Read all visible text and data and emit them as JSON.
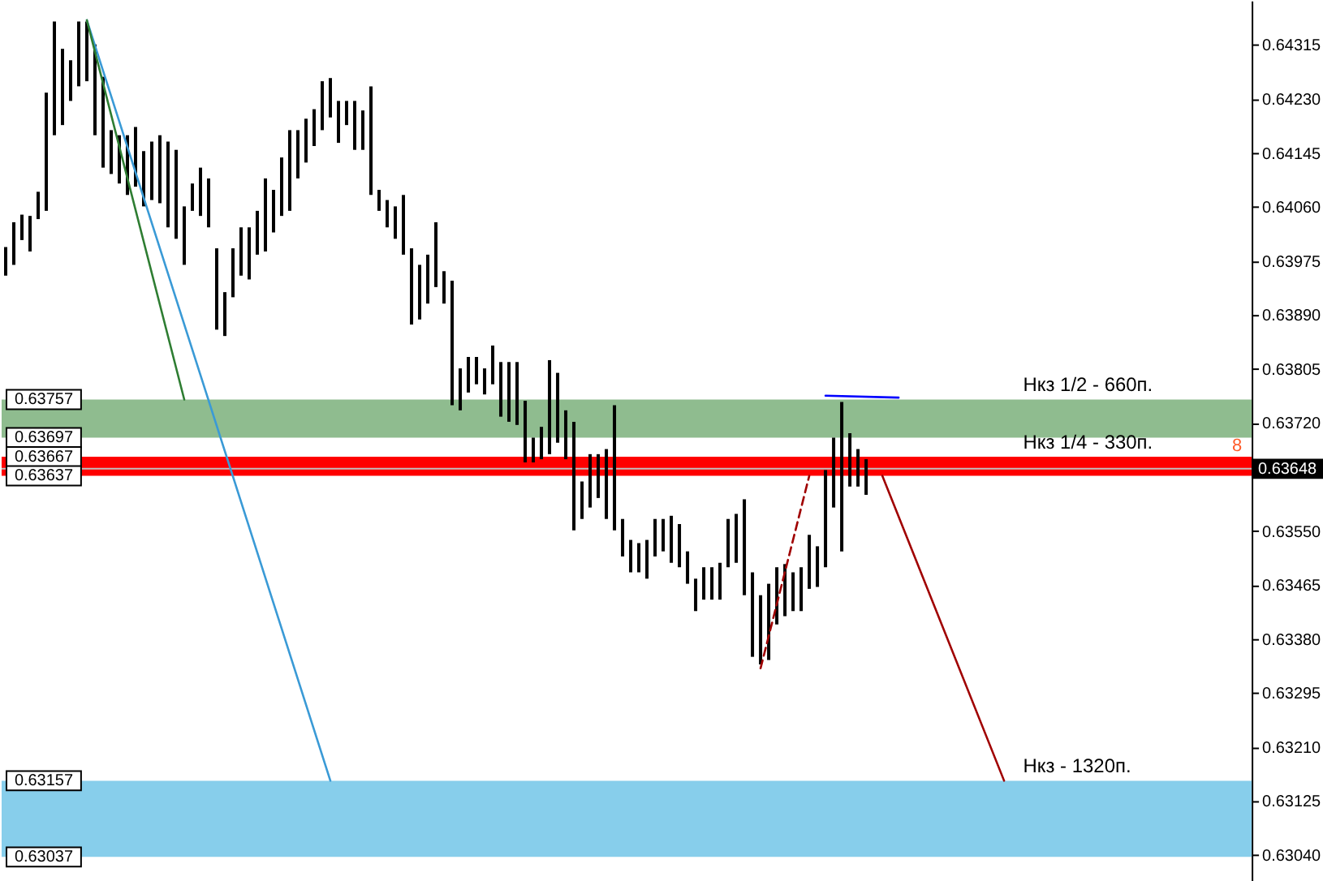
{
  "chart_data": {
    "type": "bar",
    "categories": [
      null,
      null,
      null,
      null,
      null,
      null,
      null,
      null,
      null,
      null,
      null,
      null,
      null,
      null,
      null,
      null,
      null,
      null,
      null,
      null,
      null,
      null,
      null,
      null,
      null,
      null,
      null,
      null,
      null,
      null,
      null,
      null,
      null,
      null,
      null,
      null,
      null,
      null,
      null,
      null,
      null,
      null,
      null,
      null,
      null,
      null,
      null,
      null,
      null,
      null,
      null,
      null,
      null,
      null,
      null,
      null,
      null,
      null,
      null,
      null,
      null,
      null,
      null,
      null,
      null,
      null,
      null,
      null,
      null,
      null,
      null,
      null,
      null,
      null,
      null,
      null,
      null,
      null,
      null,
      null,
      null,
      null,
      null,
      null,
      null,
      null,
      null,
      null,
      null,
      null,
      null,
      null,
      null,
      null,
      null,
      null,
      null,
      null,
      null,
      null,
      null,
      null,
      null,
      null,
      null,
      null,
      null,
      null,
      null,
      null,
      null,
      null,
      null,
      null,
      null,
      null,
      null,
      null,
      null,
      null,
      null,
      null,
      null,
      null,
      null,
      null,
      null,
      null,
      null,
      null,
      null,
      null,
      null,
      null,
      null,
      null,
      null,
      null,
      null,
      null,
      null,
      null,
      null,
      null,
      null,
      null,
      null,
      null,
      null,
      null,
      null,
      null,
      null,
      null
    ],
    "series": [
      {
        "color": "#000000",
        "base": [
          0.63952,
          0.63969,
          0.64008,
          0.6399,
          0.64041,
          0.64054,
          0.64173,
          0.64189,
          0.64227,
          0.6425,
          0.64258,
          0.64173,
          0.64122,
          0.64112,
          0.64097,
          0.64079,
          0.64092,
          0.64061,
          0.64071,
          0.64066,
          0.64028,
          0.6401,
          0.63969,
          0.64054,
          0.64046,
          0.64028,
          0.63867,
          0.63857,
          0.63918,
          0.63952,
          0.63946,
          0.63985,
          0.6399,
          0.6402,
          0.64046,
          0.64054,
          0.64105,
          0.6413,
          0.64156,
          0.64181,
          0.64201,
          0.64161,
          0.64189,
          0.6415,
          0.6415,
          0.64079,
          0.64054,
          0.64028,
          0.6401,
          0.63985,
          0.63875,
          0.63883,
          0.63908,
          0.63934,
          0.63908,
          0.63748,
          0.6374,
          0.63768,
          0.63781,
          0.63765,
          0.63781,
          0.6373,
          0.63722,
          0.63717,
          0.63658,
          0.63658,
          0.63663,
          0.63671,
          0.63689,
          0.63663,
          0.63551,
          0.63569,
          0.63587,
          0.63602,
          0.63569,
          0.63551,
          0.6351,
          0.63485,
          0.63485,
          0.63475,
          0.6351,
          0.63518,
          0.635,
          0.63493,
          0.63467,
          0.63424,
          0.63442,
          0.63442,
          0.63442,
          0.63493,
          0.635,
          0.63449,
          0.63352,
          0.6334,
          0.63347,
          0.63403,
          0.63416,
          0.63424,
          0.63424,
          0.63459,
          0.63462,
          0.63493,
          0.63587,
          0.63518,
          0.6362,
          0.6362,
          0.63607,
          null,
          null,
          null,
          null,
          null,
          null,
          null,
          null,
          null,
          null,
          null,
          null,
          null,
          null,
          null,
          null,
          null,
          null,
          null,
          null,
          null,
          null,
          null,
          null,
          null,
          null,
          null,
          null,
          null,
          null,
          null,
          null,
          null,
          null,
          null,
          null,
          null,
          null,
          null,
          null,
          null,
          null,
          null,
          null,
          null,
          null,
          null
        ],
        "values": [
          0.00045,
          0.00067,
          0.0004,
          0.00056,
          0.00043,
          0.00186,
          0.00179,
          0.0012,
          0.00064,
          0.00102,
          0.00094,
          0.00143,
          0.00143,
          0.00069,
          0.00076,
          0.00094,
          0.00094,
          0.00087,
          0.00092,
          0.00107,
          0.00135,
          0.0014,
          0.00092,
          0.00043,
          0.00076,
          0.00077,
          0.00128,
          0.00069,
          0.00077,
          0.00076,
          0.00082,
          0.00069,
          0.00115,
          0.00067,
          0.00092,
          0.00127,
          0.00076,
          0.00069,
          0.00058,
          0.00077,
          0.00062,
          0.00066,
          0.00038,
          0.00077,
          0.00062,
          0.00171,
          0.00033,
          0.00043,
          0.00051,
          0.00094,
          0.0012,
          0.00086,
          0.00077,
          0.00102,
          0.00051,
          0.00196,
          0.00066,
          0.00056,
          0.00043,
          0.00041,
          0.00061,
          0.00086,
          0.00094,
          0.00099,
          0.00097,
          0.00039,
          0.00051,
          0.00148,
          0.0011,
          0.00077,
          0.00171,
          0.00059,
          0.00084,
          0.00069,
          0.0011,
          0.00197,
          0.00059,
          0.00051,
          0.00046,
          0.00061,
          0.00059,
          0.00051,
          0.00074,
          0.00068,
          0.00051,
          0.00051,
          0.00051,
          0.00051,
          0.00058,
          0.00076,
          0.00077,
          0.00151,
          0.00133,
          0.00109,
          0.0012,
          0.0009,
          0.00082,
          0.00061,
          0.00069,
          0.00085,
          0.00064,
          0.00153,
          0.0011,
          0.00235,
          0.00084,
          0.00059,
          0.00056,
          null,
          null,
          null,
          null,
          null,
          null,
          null,
          null,
          null,
          null,
          null,
          null,
          null,
          null,
          null,
          null,
          null,
          null,
          null,
          null,
          null,
          null,
          null,
          null,
          null,
          null,
          null,
          null,
          null,
          null,
          null,
          null,
          null,
          null,
          null,
          null,
          null,
          null,
          null,
          null,
          null,
          null,
          null,
          null,
          null,
          null,
          null
        ]
      },
      {
        "type": "line",
        "color": "#3a9ad6",
        "values": [
          null,
          null,
          null,
          null,
          null,
          null,
          null,
          null,
          null,
          null,
          0.64354,
          null,
          null,
          null,
          null,
          null,
          null,
          null,
          null,
          null,
          null,
          null,
          null,
          null,
          null,
          null,
          null,
          null,
          null,
          null,
          null,
          null,
          null,
          null,
          null,
          null,
          null,
          null,
          null,
          null,
          0.63157,
          null,
          null,
          null,
          null,
          null,
          null,
          null,
          null,
          null,
          null,
          null,
          null,
          null,
          null,
          null,
          null,
          null,
          null,
          null,
          null,
          null,
          null,
          null,
          null,
          null,
          null,
          null,
          null,
          null,
          null,
          null,
          null,
          null,
          null,
          null,
          null,
          null,
          null,
          null,
          null,
          null,
          null,
          null,
          null,
          null,
          null,
          null,
          null,
          null,
          null,
          null,
          null,
          null,
          null,
          null,
          null,
          null,
          null,
          null,
          null,
          null,
          null,
          null,
          null,
          null,
          null,
          null,
          null,
          null,
          null,
          null,
          null,
          null,
          null,
          null,
          null,
          null,
          null,
          null,
          null,
          null,
          null,
          null,
          null,
          null,
          null,
          null,
          null,
          null,
          null,
          null,
          null,
          null,
          null,
          null,
          null,
          null,
          null,
          null,
          null,
          null,
          null,
          null,
          null,
          null,
          null,
          null,
          null,
          null,
          null,
          null,
          null,
          null
        ]
      },
      {
        "type": "line",
        "color": "#2e7d32",
        "values": [
          null,
          null,
          null,
          null,
          null,
          null,
          null,
          null,
          null,
          null,
          0.64354,
          null,
          null,
          null,
          null,
          null,
          null,
          null,
          null,
          null,
          null,
          null,
          0.63757,
          null,
          null,
          null,
          null,
          null,
          null,
          null,
          null,
          null,
          null,
          null,
          null,
          null,
          null,
          null,
          null,
          null,
          null,
          null,
          null,
          null,
          null,
          null,
          null,
          null,
          null,
          null,
          null,
          null,
          null,
          null,
          null,
          null,
          null,
          null,
          null,
          null,
          null,
          null,
          null,
          null,
          null,
          null,
          null,
          null,
          null,
          null,
          null,
          null,
          null,
          null,
          null,
          null,
          null,
          null,
          null,
          null,
          null,
          null,
          null,
          null,
          null,
          null,
          null,
          null,
          null,
          null,
          null,
          null,
          null,
          null,
          null,
          null,
          null,
          null,
          null,
          null,
          null,
          null,
          null,
          null,
          null,
          null,
          null,
          null,
          null,
          null,
          null,
          null,
          null,
          null,
          null,
          null,
          null,
          null,
          null,
          null,
          null,
          null,
          null,
          null,
          null,
          null,
          null,
          null,
          null,
          null,
          null,
          null,
          null,
          null,
          null,
          null,
          null,
          null,
          null,
          null,
          null,
          null,
          null,
          null,
          null,
          null,
          null,
          null,
          null,
          null,
          null,
          null,
          null,
          null
        ]
      },
      {
        "type": "line",
        "color": "#a00000",
        "line_style": "dashed",
        "values": [
          null,
          null,
          null,
          null,
          null,
          null,
          null,
          null,
          null,
          null,
          null,
          null,
          null,
          null,
          null,
          null,
          null,
          null,
          null,
          null,
          null,
          null,
          null,
          null,
          null,
          null,
          null,
          null,
          null,
          null,
          null,
          null,
          null,
          null,
          null,
          null,
          null,
          null,
          null,
          null,
          null,
          null,
          null,
          null,
          null,
          null,
          null,
          null,
          null,
          null,
          null,
          null,
          null,
          null,
          null,
          null,
          null,
          null,
          null,
          null,
          null,
          null,
          null,
          null,
          null,
          null,
          null,
          null,
          null,
          null,
          null,
          null,
          null,
          null,
          null,
          null,
          null,
          null,
          null,
          null,
          null,
          null,
          null,
          null,
          null,
          null,
          null,
          null,
          null,
          null,
          null,
          null,
          null,
          0.63334,
          null,
          null,
          null,
          null,
          null,
          0.63637,
          null,
          null,
          null,
          null,
          null,
          null,
          null,
          null,
          null,
          null,
          null,
          null,
          null,
          null,
          null,
          null,
          null,
          null,
          null,
          null,
          null,
          null,
          null,
          null,
          null,
          null,
          null,
          null,
          null,
          null,
          null,
          null,
          null,
          null,
          null,
          null,
          null,
          null,
          null,
          null,
          null,
          null,
          null,
          null,
          null,
          null,
          null,
          null,
          null,
          null,
          null,
          null,
          null,
          null
        ]
      },
      {
        "type": "line",
        "color": "#0000ff",
        "values": [
          null,
          null,
          null,
          null,
          null,
          null,
          null,
          null,
          null,
          null,
          null,
          null,
          null,
          null,
          null,
          null,
          null,
          null,
          null,
          null,
          null,
          null,
          null,
          null,
          null,
          null,
          null,
          null,
          null,
          null,
          null,
          null,
          null,
          null,
          null,
          null,
          null,
          null,
          null,
          null,
          null,
          null,
          null,
          null,
          null,
          null,
          null,
          null,
          null,
          null,
          null,
          null,
          null,
          null,
          null,
          null,
          null,
          null,
          null,
          null,
          null,
          null,
          null,
          null,
          null,
          null,
          null,
          null,
          null,
          null,
          null,
          null,
          null,
          null,
          null,
          null,
          null,
          null,
          null,
          null,
          null,
          null,
          null,
          null,
          null,
          null,
          null,
          null,
          null,
          null,
          null,
          null,
          null,
          null,
          null,
          null,
          null,
          null,
          null,
          null,
          null,
          0.63763,
          null,
          null,
          null,
          null,
          null,
          null,
          null,
          null,
          0.6376,
          null,
          null,
          null,
          null,
          null,
          null,
          null,
          null,
          null,
          null,
          null,
          null,
          null,
          null,
          null,
          null,
          null,
          null,
          null,
          null,
          null,
          null,
          null,
          null,
          null,
          null,
          null,
          null,
          null,
          null,
          null,
          null,
          null,
          null,
          null,
          null,
          null,
          null,
          null,
          null,
          null,
          null,
          null
        ]
      },
      {
        "type": "line",
        "color": "#a00000",
        "values": [
          null,
          null,
          null,
          null,
          null,
          null,
          null,
          null,
          null,
          null,
          null,
          null,
          null,
          null,
          null,
          null,
          null,
          null,
          null,
          null,
          null,
          null,
          null,
          null,
          null,
          null,
          null,
          null,
          null,
          null,
          null,
          null,
          null,
          null,
          null,
          null,
          null,
          null,
          null,
          null,
          null,
          null,
          null,
          null,
          null,
          null,
          null,
          null,
          null,
          null,
          null,
          null,
          null,
          null,
          null,
          null,
          null,
          null,
          null,
          null,
          null,
          null,
          null,
          null,
          null,
          null,
          null,
          null,
          null,
          null,
          null,
          null,
          null,
          null,
          null,
          null,
          null,
          null,
          null,
          null,
          null,
          null,
          null,
          null,
          null,
          null,
          null,
          null,
          null,
          null,
          null,
          null,
          null,
          null,
          null,
          null,
          null,
          null,
          null,
          null,
          null,
          null,
          null,
          null,
          null,
          null,
          null,
          null,
          0.63637,
          null,
          null,
          null,
          null,
          null,
          null,
          null,
          null,
          null,
          null,
          null,
          null,
          null,
          null,
          0.63157,
          null,
          null,
          null,
          null,
          null,
          null,
          null,
          null,
          null,
          null,
          null,
          null,
          null,
          null,
          null,
          null,
          null,
          null,
          null,
          null,
          null,
          null,
          null,
          null,
          null,
          null,
          null,
          null,
          null,
          null
        ]
      }
    ],
    "ylim": [
      0.63,
      0.64385
    ],
    "yticks": [
      {
        "value": 0.6304,
        "label": "0.63040"
      },
      0.63125,
      {
        "value": 0.6321,
        "label": "0.63210"
      },
      0.63295,
      {
        "value": 0.6338,
        "label": "0.63380"
      },
      0.63465,
      {
        "value": 0.6355,
        "label": "0.63550"
      },
      {
        "value": 0.63635,
        "label": null
      },
      {
        "value": 0.6372,
        "label": "0.63720"
      },
      0.63805,
      {
        "value": 0.6389,
        "label": "0.63890"
      },
      0.63975,
      {
        "value": 0.6406,
        "label": "0.64060"
      },
      0.64145,
      {
        "value": 0.6423,
        "label": "0.64230"
      },
      0.64315
    ],
    "tick_labels": "y",
    "ref_lines": [
      {
        "axis": "y",
        "value": 0.63648,
        "label": "0.63648",
        "color": "#c0c0c0"
      }
    ],
    "bands": [
      {
        "axis": "y",
        "from": 0.63697,
        "to": 0.63757,
        "label": "Нкз 1/2 - 660п.",
        "color": "#8fbc8f"
      },
      {
        "axis": "y",
        "from": 0.63637,
        "to": 0.63667,
        "label": "Нкз 1/4 - 330п.",
        "color": "#ff0000"
      },
      {
        "axis": "y",
        "from": 0.63037,
        "to": 0.63157,
        "label": "Нкз - 1320п.",
        "color": "#87ceeb"
      }
    ],
    "annotations": [
      "8",
      {
        "text": "0.63757",
        "y": 0.63757
      },
      {
        "text": "0.63697",
        "y": 0.63697
      },
      {
        "text": "0.63667",
        "y": 0.63667
      },
      {
        "text": "0.63637",
        "y": 0.63637
      },
      {
        "text": "0.63157",
        "y": 0.63157
      },
      {
        "text": "0.63037",
        "y": 0.63037
      }
    ]
  }
}
